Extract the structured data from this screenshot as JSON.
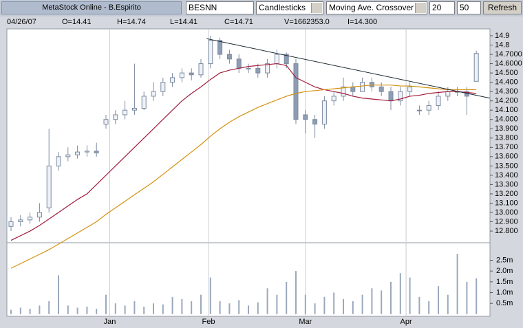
{
  "toolbar": {
    "caption": "MetaStock Online - B.Espirito",
    "symbol": "BESNN",
    "chart_style": "Candlesticks",
    "indicator": "Moving Ave. Crossover",
    "period_1": "20",
    "period_2": "50",
    "button": "Refresh"
  },
  "info": [
    "04/26/07",
    "O=14.41",
    "H=14.74",
    "L=14.41",
    "C=14.71",
    "V=1662353.0",
    "I=14.300"
  ],
  "chart_data": {
    "type": "candlestick",
    "open": [
      12.85,
      12.9,
      12.92,
      12.95,
      13.05,
      13.5,
      13.6,
      13.62,
      13.65,
      13.66,
      13.95,
      14.0,
      14.05,
      14.1,
      14.12,
      14.25,
      14.3,
      14.4,
      14.45,
      14.5,
      14.48,
      14.6,
      14.85,
      14.7,
      14.65,
      14.55,
      14.55,
      14.5,
      14.6,
      14.7,
      14.6,
      14.05,
      14.0,
      13.95,
      14.2,
      14.25,
      14.35,
      14.3,
      14.4,
      14.35,
      14.3,
      14.2,
      14.3,
      14.1,
      14.1,
      14.15,
      14.25,
      14.3,
      14.3,
      14.41
    ],
    "high": [
      12.95,
      12.97,
      13.0,
      13.1,
      13.9,
      13.65,
      13.7,
      13.72,
      13.72,
      13.75,
      14.05,
      14.1,
      14.2,
      14.6,
      14.3,
      14.4,
      14.45,
      14.5,
      14.55,
      14.55,
      14.65,
      14.9,
      14.88,
      14.75,
      14.7,
      14.6,
      14.6,
      14.65,
      14.75,
      14.72,
      14.65,
      14.1,
      14.05,
      14.25,
      14.3,
      14.45,
      14.4,
      14.45,
      14.45,
      14.4,
      14.35,
      14.35,
      14.4,
      14.15,
      14.2,
      14.3,
      14.35,
      14.35,
      14.35,
      14.74
    ],
    "low": [
      12.8,
      12.85,
      12.88,
      12.9,
      13.0,
      13.45,
      13.55,
      13.58,
      13.6,
      13.6,
      13.9,
      13.95,
      14.0,
      14.05,
      14.1,
      14.2,
      14.25,
      14.35,
      14.4,
      14.42,
      14.45,
      14.55,
      14.65,
      14.6,
      14.5,
      14.5,
      14.45,
      14.45,
      14.55,
      14.55,
      13.95,
      13.85,
      13.8,
      13.9,
      14.15,
      14.2,
      14.25,
      14.3,
      14.3,
      14.25,
      14.1,
      14.15,
      14.25,
      14.05,
      14.05,
      14.1,
      14.2,
      14.25,
      14.05,
      14.41
    ],
    "close": [
      12.9,
      12.92,
      12.95,
      13.0,
      13.5,
      13.6,
      13.62,
      13.65,
      13.66,
      13.64,
      14.0,
      14.05,
      14.1,
      14.12,
      14.25,
      14.3,
      14.4,
      14.45,
      14.5,
      14.48,
      14.6,
      14.85,
      14.7,
      14.65,
      14.55,
      14.55,
      14.5,
      14.6,
      14.7,
      14.6,
      14.0,
      14.0,
      13.95,
      14.2,
      14.25,
      14.35,
      14.3,
      14.4,
      14.35,
      14.3,
      14.2,
      14.3,
      14.35,
      14.1,
      14.15,
      14.25,
      14.3,
      14.3,
      14.25,
      14.71
    ],
    "volume": [
      200000,
      300000,
      250000,
      400000,
      600000,
      1800000,
      400000,
      300000,
      350000,
      250000,
      900000,
      500000,
      400000,
      600000,
      350000,
      500000,
      450000,
      800000,
      700000,
      600000,
      900000,
      1700000,
      600000,
      500000,
      650000,
      400000,
      550000,
      1200000,
      900000,
      1500000,
      2000000,
      900000,
      500000,
      800000,
      1000000,
      700000,
      600000,
      900000,
      1200000,
      1100000,
      1500000,
      1900000,
      1700000,
      800000,
      600000,
      1300000,
      900000,
      2800000,
      1500000,
      1662353
    ],
    "up_color": "#eef2f7",
    "down_color": "#8d9db4",
    "series": [
      {
        "color": "#a01c3c",
        "values": [
          12.7,
          12.75,
          12.8,
          12.86,
          12.93,
          13.0,
          13.07,
          13.14,
          13.2,
          13.3,
          13.4,
          13.5,
          13.6,
          13.7,
          13.8,
          13.9,
          14.0,
          14.1,
          14.2,
          14.28,
          14.35,
          14.43,
          14.5,
          14.53,
          14.55,
          14.57,
          14.58,
          14.59,
          14.6,
          14.58,
          14.45,
          14.4,
          14.35,
          14.32,
          14.3,
          14.28,
          14.25,
          14.23,
          14.22,
          14.21,
          14.2,
          14.22,
          14.25,
          14.26,
          14.28,
          14.29,
          14.3,
          14.3,
          14.29,
          14.28
        ]
      },
      {
        "color": "#d4900e",
        "values": [
          12.4,
          12.45,
          12.5,
          12.55,
          12.6,
          12.66,
          12.72,
          12.78,
          12.84,
          12.9,
          12.98,
          13.05,
          13.12,
          13.19,
          13.26,
          13.33,
          13.41,
          13.49,
          13.57,
          13.65,
          13.73,
          13.82,
          13.9,
          13.97,
          14.03,
          14.08,
          14.13,
          14.17,
          14.21,
          14.25,
          14.28,
          14.3,
          14.31,
          14.32,
          14.33,
          14.34,
          14.35,
          14.36,
          14.37,
          14.37,
          14.37,
          14.36,
          14.36,
          14.35,
          14.34,
          14.33,
          14.32,
          14.32,
          14.32,
          14.32
        ]
      }
    ],
    "trendline": {
      "color": "#1a2a30",
      "values": [
        14.86,
        14.26
      ]
    },
    "xlim": [
      -0.435,
      50.435
    ],
    "xticks": [
      {
        "value": 10.4,
        "label": "Jan"
      },
      {
        "value": 20.8,
        "label": "Feb"
      },
      {
        "value": 31,
        "label": "Mar"
      },
      {
        "value": 41.6,
        "label": "Apr"
      }
    ],
    "ylim": [
      12.682,
      14.974
    ],
    "yticks": [
      14.9,
      14.8,
      {
        "value": 14.7,
        "label": "14.7000"
      },
      {
        "value": 14.6,
        "label": "14.6000"
      },
      {
        "value": 14.5,
        "label": "14.500"
      },
      {
        "value": 14.4,
        "label": "14.400"
      },
      {
        "value": 14.3,
        "label": "14.300"
      },
      {
        "value": 14.2,
        "label": "14.200"
      },
      {
        "value": 14.1,
        "label": "14.100"
      },
      {
        "value": 14,
        "label": "14.000"
      },
      {
        "value": 13.9,
        "label": "13.900"
      },
      {
        "value": 13.8,
        "label": "13.800"
      },
      {
        "value": 13.7,
        "label": "13.700"
      },
      {
        "value": 13.6,
        "label": "13.600"
      },
      {
        "value": 13.5,
        "label": "13.500"
      },
      {
        "value": 13.4,
        "label": "13.400"
      },
      {
        "value": 13.3,
        "label": "13.300"
      },
      {
        "value": 13.2,
        "label": "13.200"
      },
      {
        "value": 13.1,
        "label": "13.100"
      },
      {
        "value": 13,
        "label": "13.000"
      },
      {
        "value": 12.9,
        "label": "12.900"
      },
      {
        "value": 12.8,
        "label": "12.800"
      }
    ],
    "y2lim": [
      -100000,
      3250000
    ],
    "y2ticks": [
      {
        "value": 2500000,
        "label": "2.5m"
      },
      {
        "value": 2000000,
        "label": "2.0m"
      },
      {
        "value": 1500000,
        "label": "1.5m"
      },
      {
        "value": 1000000,
        "label": "1.0m"
      },
      {
        "value": 500000,
        "label": "0.5m"
      }
    ],
    "grid": true
  }
}
